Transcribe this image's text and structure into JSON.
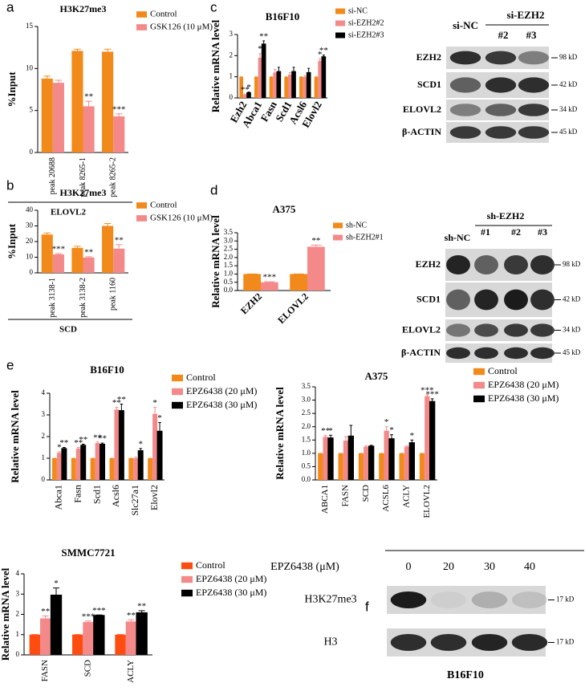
{
  "panel_labels": [
    "a",
    "b",
    "c",
    "d",
    "e",
    "f"
  ],
  "chart_data": [
    {
      "type": "bar",
      "title": "H3K27me3",
      "ylabel": "%Input",
      "group_label": "ELOVL2",
      "categories": [
        "peak 20688",
        "peak 8265-1",
        "peak 8265-2"
      ],
      "ylim": [
        0,
        15
      ],
      "yticks": [
        0,
        5,
        10,
        15
      ],
      "series": [
        {
          "name": "Control",
          "color": "#f28a1b",
          "values": [
            8.8,
            12.1,
            12.0
          ],
          "errors": [
            0.3,
            0.2,
            0.3
          ],
          "significance": [
            null,
            null,
            null
          ]
        },
        {
          "name": "GSK126 (10 μM)",
          "color": "#f4898a",
          "values": [
            8.3,
            5.5,
            4.3
          ],
          "errors": [
            0.3,
            0.6,
            0.3
          ],
          "significance": [
            null,
            "**",
            "***"
          ]
        }
      ]
    },
    {
      "type": "bar",
      "title": "H3K27me3",
      "ylabel": "%Input",
      "group_label": "SCD",
      "categories": [
        "peak 3138-1",
        "peak 3138-2",
        "peak 1160"
      ],
      "ylim": [
        0,
        40
      ],
      "yticks": [
        0,
        10,
        20,
        30,
        40
      ],
      "series": [
        {
          "name": "Control",
          "color": "#f28a1b",
          "values": [
            24.5,
            16,
            30
          ],
          "errors": [
            1,
            1,
            1.5
          ],
          "significance": [
            null,
            null,
            null
          ]
        },
        {
          "name": "GSK126 (10 μM)",
          "color": "#f4898a",
          "values": [
            11.8,
            9.8,
            15.5
          ],
          "errors": [
            0.5,
            0.5,
            2.5
          ],
          "significance": [
            "***",
            "**",
            "**"
          ]
        }
      ]
    },
    {
      "type": "bar",
      "title": "B16F10",
      "ylabel": "Relative mRNA level",
      "categories": [
        "Ezh2",
        "Abca1",
        "Fasn",
        "Scd1",
        "Acsl6",
        "Elovl2"
      ],
      "ylim": [
        0,
        3
      ],
      "yticks": [
        0,
        1,
        2,
        3
      ],
      "series": [
        {
          "name": "si-NC",
          "color": "#f28a1b",
          "values": [
            1,
            1,
            1,
            1,
            1,
            1
          ],
          "errors": [
            0,
            0,
            0,
            0,
            0,
            0
          ],
          "significance": [
            null,
            null,
            null,
            null,
            null,
            null
          ]
        },
        {
          "name": "si-EZH2#2",
          "color": "#f4898a",
          "values": [
            0.15,
            1.9,
            1.2,
            1.1,
            1.0,
            1.75
          ],
          "errors": [
            0.03,
            0.2,
            0.15,
            0.1,
            0.05,
            0.1
          ],
          "significance": [
            "**",
            "*",
            null,
            null,
            null,
            "*"
          ]
        },
        {
          "name": "si-EZH2#3",
          "color": "#000000",
          "values": [
            0.25,
            2.55,
            1.25,
            1.25,
            1.2,
            1.95
          ],
          "errors": [
            0.03,
            0.15,
            0.2,
            0.2,
            0.2,
            0.08
          ],
          "significance": [
            "*",
            "**",
            null,
            null,
            null,
            "**"
          ]
        }
      ]
    },
    {
      "type": "bar",
      "title": "A375",
      "ylabel": "Relative mRNA level",
      "categories": [
        "EZH2",
        "ELOVL2"
      ],
      "ylim": [
        0,
        3.5
      ],
      "yticks": [
        {
          "value": 0,
          "label": "0.0"
        },
        0.5,
        {
          "value": 1,
          "label": "1.0"
        },
        1.5,
        {
          "value": 2,
          "label": "2.0"
        },
        2.5,
        {
          "value": 3,
          "label": "3.0"
        },
        3.5
      ],
      "series": [
        {
          "name": "sh-NC",
          "color": "#f28a1b",
          "values": [
            1,
            1
          ],
          "errors": [
            0,
            0
          ],
          "significance": [
            null,
            null
          ]
        },
        {
          "name": "sh-EZH2#1",
          "color": "#f4898a",
          "values": [
            0.5,
            2.65
          ],
          "errors": [
            0.03,
            0.1
          ],
          "significance": [
            "***",
            "**"
          ]
        }
      ]
    },
    {
      "type": "bar",
      "title": "B16F10",
      "ylabel": "Relative mRNA level",
      "categories": [
        "Abca1",
        "Fasn",
        "Scd1",
        "Acsl6",
        "Slc27a1",
        "Elovl2"
      ],
      "ylim": [
        0,
        4
      ],
      "yticks": [
        0,
        1,
        2,
        3,
        4
      ],
      "series": [
        {
          "name": "Control",
          "color": "#f28a1b",
          "values": [
            1,
            1,
            1,
            1,
            1,
            1
          ],
          "errors": [
            0,
            0,
            0,
            0,
            0,
            0
          ],
          "significance": [
            null,
            null,
            null,
            null,
            null,
            null
          ]
        },
        {
          "name": "EPZ6438 (20 μM)",
          "color": "#f4898a",
          "values": [
            1.25,
            1.45,
            1.7,
            3.25,
            1.0,
            3.05
          ],
          "errors": [
            0.05,
            0.05,
            0.05,
            0.1,
            0.05,
            0.3
          ],
          "significance": [
            "*",
            "**",
            "**",
            "**",
            null,
            "*"
          ]
        },
        {
          "name": "EPZ6438 (30 μM)",
          "color": "#000000",
          "values": [
            1.45,
            1.6,
            1.65,
            3.2,
            1.35,
            2.25
          ],
          "errors": [
            0.05,
            0.05,
            0.05,
            0.3,
            0.1,
            0.4
          ],
          "significance": [
            "**",
            "**",
            "**",
            "**",
            "*",
            "*"
          ]
        }
      ]
    },
    {
      "type": "bar",
      "title": "A375",
      "ylabel": "Relative mRNA level",
      "categories": [
        "ABCA1",
        "FASN",
        "SCD",
        "ACSL6",
        "ACLY",
        "ELOVL2"
      ],
      "ylim": [
        0,
        3.5
      ],
      "yticks": [
        {
          "value": 0,
          "label": "0.0"
        },
        0.5,
        {
          "value": 1,
          "label": "1.0"
        },
        1.5,
        {
          "value": 2,
          "label": "2.0"
        },
        2.5,
        {
          "value": 3,
          "label": "3.0"
        },
        3.5
      ],
      "series": [
        {
          "name": "Control",
          "color": "#f28a1b",
          "values": [
            1,
            1,
            1,
            1,
            1,
            1
          ],
          "errors": [
            0,
            0,
            0,
            0,
            0,
            0
          ],
          "significance": [
            null,
            null,
            null,
            null,
            null,
            null
          ]
        },
        {
          "name": "EPZ6438 (20 μM)",
          "color": "#f4898a",
          "values": [
            1.62,
            1.48,
            1.25,
            1.85,
            1.25,
            3.15
          ],
          "errors": [
            0.05,
            0.15,
            0.03,
            0.15,
            0.03,
            0.05
          ],
          "significance": [
            "**",
            null,
            null,
            "*",
            null,
            "***"
          ]
        },
        {
          "name": "EPZ6438 (30 μM)",
          "color": "#000000",
          "values": [
            1.58,
            1.65,
            1.27,
            1.55,
            1.4,
            2.95
          ],
          "errors": [
            0.1,
            0.4,
            0.03,
            0.15,
            0.1,
            0.1
          ],
          "significance": [
            "*",
            null,
            null,
            "*",
            "*",
            "***"
          ]
        }
      ]
    },
    {
      "type": "bar",
      "title": "SMMC7721",
      "ylabel": "Relative mRNA level",
      "categories": [
        "FASN",
        "SCD",
        "ACLY"
      ],
      "ylim": [
        0,
        4
      ],
      "yticks": [
        0,
        1,
        2,
        3,
        4
      ],
      "series": [
        {
          "name": "Control",
          "color": "#ff4d12",
          "values": [
            1,
            1,
            1
          ],
          "errors": [
            0,
            0,
            0
          ],
          "significance": [
            null,
            null,
            null
          ]
        },
        {
          "name": "EPZ6438 (20 μM)",
          "color": "#f4898a",
          "values": [
            1.8,
            1.62,
            1.65
          ],
          "errors": [
            0.12,
            0.05,
            0.08
          ],
          "significance": [
            "**",
            "***",
            "**"
          ]
        },
        {
          "name": "EPZ6438 (30 μM)",
          "color": "#000000",
          "values": [
            2.95,
            1.95,
            2.08
          ],
          "errors": [
            0.35,
            0.02,
            0.1
          ],
          "significance": [
            "*",
            "***",
            "**"
          ]
        }
      ]
    }
  ],
  "blots": [
    {
      "header": [
        "si-NC",
        "si-EZH2",
        "#2",
        "#3"
      ],
      "rows": [
        {
          "label": "EZH2",
          "size": "98 kD"
        },
        {
          "label": "SCD1",
          "size": "42 kD"
        },
        {
          "label": "ELOVL2",
          "size": "34 kD"
        },
        {
          "label": "β-ACTIN",
          "size": "45 kD"
        }
      ]
    },
    {
      "header": [
        "sh-NC",
        "sh-EZH2",
        "#1",
        "#2",
        "#3"
      ],
      "rows": [
        {
          "label": "EZH2",
          "size": "98 kD"
        },
        {
          "label": "SCD1",
          "size": "42 kD"
        },
        {
          "label": "ELOVL2",
          "size": "34 kD"
        },
        {
          "label": "β-ACTIN",
          "size": "45 kD"
        }
      ]
    },
    {
      "header": [
        "EPZ6438 (μM)",
        "0",
        "20",
        "30",
        "40"
      ],
      "rows": [
        {
          "label": "H3K27me3",
          "size": "17 kD"
        },
        {
          "label": "H3",
          "size": "17 kD"
        }
      ],
      "caption": "B16F10"
    }
  ]
}
